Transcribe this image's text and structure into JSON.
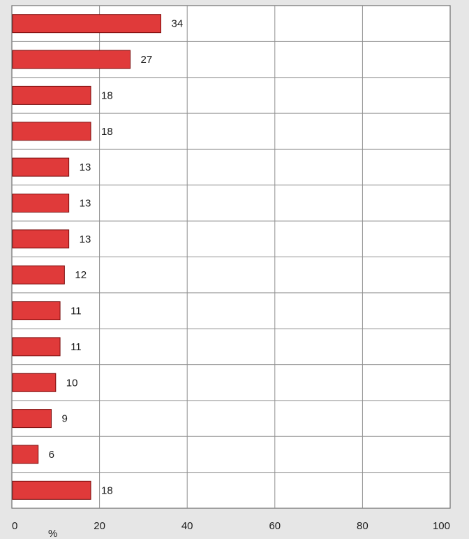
{
  "chart_data": {
    "type": "bar",
    "orientation": "horizontal",
    "categories": [
      "",
      "",
      "",
      "",
      "",
      "",
      "",
      "",
      "",
      "",
      "",
      "",
      "",
      ""
    ],
    "values": [
      34,
      27,
      18,
      18,
      13,
      13,
      13,
      12,
      11,
      11,
      10,
      9,
      6,
      18
    ],
    "value_labels": [
      "34",
      "27",
      "18",
      "18",
      "13",
      "13",
      "13",
      "12",
      "11",
      "11",
      "10",
      "9",
      "6",
      "18"
    ],
    "xlim": [
      0,
      100
    ],
    "xticks": [
      0,
      20,
      40,
      60,
      80,
      100
    ],
    "xtick_labels": [
      "0",
      "20",
      "40",
      "60",
      "80",
      "100"
    ],
    "xunit": "%",
    "grid": true,
    "bar_color": "#e03a3a",
    "bar_edge_color": "#7a0d0d",
    "background_color": "#e6e6e6",
    "plot_background_color": "#ffffff",
    "grid_color": "#8f8f8f"
  }
}
